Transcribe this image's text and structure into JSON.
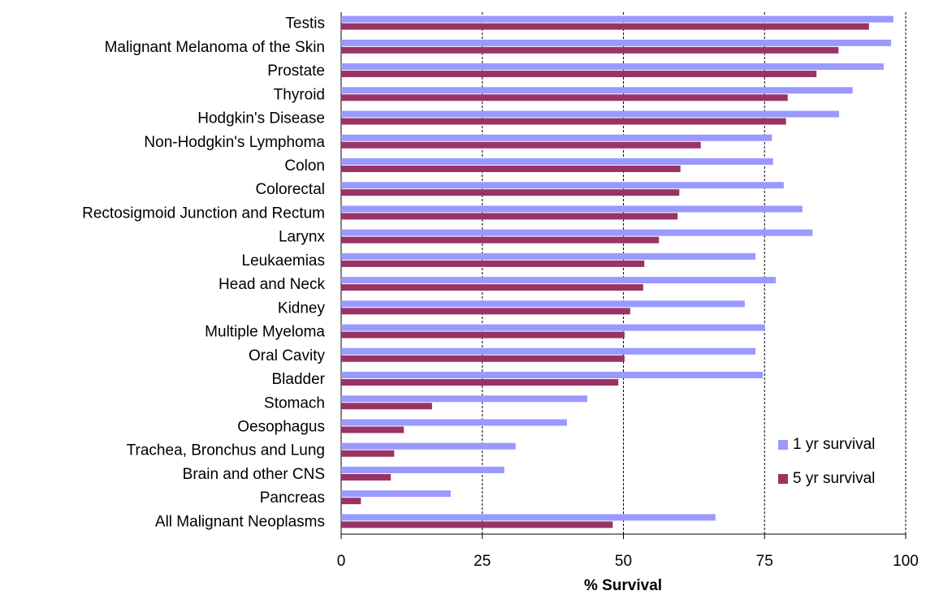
{
  "chart_data": {
    "type": "barh",
    "categories": [
      "Testis",
      "Malignant Melanoma of the Skin",
      "Prostate",
      "Thyroid",
      "Hodgkin's Disease",
      "Non-Hodgkin's Lymphoma",
      "Colon",
      "Colorectal",
      "Rectosigmoid Junction and Rectum",
      "Larynx",
      "Leukaemias",
      "Head and Neck",
      "Kidney",
      "Multiple Myeloma",
      "Oral Cavity",
      "Bladder",
      "Stomach",
      "Oesophagus",
      "Trachea, Bronchus and Lung",
      "Brain and other CNS",
      "Pancreas",
      "All Malignant Neoplasms"
    ],
    "series": [
      {
        "name": "1 yr survival",
        "color": "#9999ff",
        "values": [
          97.8,
          97.4,
          96.1,
          90.6,
          88.2,
          76.3,
          76.5,
          78.4,
          81.7,
          83.5,
          73.4,
          77.0,
          71.5,
          75.1,
          73.4,
          74.7,
          43.6,
          40.0,
          30.9,
          28.9,
          19.4,
          66.3
        ]
      },
      {
        "name": "5 yr survival",
        "color": "#993366",
        "values": [
          93.5,
          88.1,
          84.2,
          79.1,
          78.8,
          63.7,
          60.1,
          59.9,
          59.6,
          56.3,
          53.7,
          53.5,
          51.2,
          50.2,
          50.2,
          49.1,
          16.1,
          11.1,
          9.4,
          8.8,
          3.5,
          48.1
        ]
      }
    ],
    "x_label": "% Survival",
    "xlim": [
      0,
      100
    ],
    "xticks": [
      0,
      25,
      50,
      75,
      100
    ],
    "grid": true,
    "legend": "lower right"
  }
}
